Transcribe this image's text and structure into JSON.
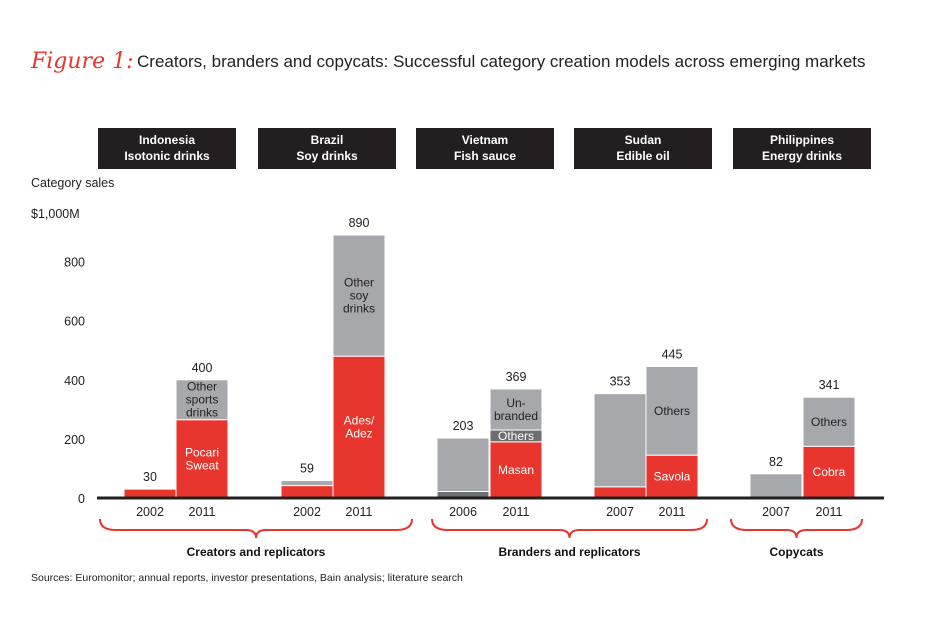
{
  "title": {
    "figure_label": "Figure 1:",
    "text": "Creators, branders and copycats: Successful category creation models across emerging markets"
  },
  "colors": {
    "red": "#e8352d",
    "gray": "#a6a8ab",
    "dark_gray": "#6d6e71",
    "header_bg": "#231f20",
    "brace": "#e8352d",
    "axis": "#231f20"
  },
  "chart_data": {
    "type": "bar",
    "stacked": true,
    "ylabel": "Category sales",
    "yunit": "$1,000M",
    "ylim": [
      0,
      1000
    ],
    "yticks": [
      0,
      200,
      400,
      600,
      800
    ],
    "panels": [
      {
        "header": [
          "Indonesia",
          "Isotonic drinks"
        ],
        "bars": [
          {
            "year": "2002",
            "total": 30,
            "total_label": "30",
            "segments": [
              {
                "value": 30,
                "color": "red",
                "label": []
              }
            ]
          },
          {
            "year": "2011",
            "total": 400,
            "total_label": "400",
            "segments": [
              {
                "value": 265,
                "color": "red",
                "label": [
                  "Pocari",
                  "Sweat"
                ]
              },
              {
                "value": 135,
                "color": "gray",
                "label": [
                  "Other",
                  "sports",
                  "drinks"
                ]
              }
            ]
          }
        ]
      },
      {
        "header": [
          "Brazil",
          "Soy drinks"
        ],
        "bars": [
          {
            "year": "2002",
            "total": 59,
            "total_label": "59",
            "segments": [
              {
                "value": 42,
                "color": "red",
                "label": []
              },
              {
                "value": 17,
                "color": "gray",
                "label": []
              }
            ]
          },
          {
            "year": "2011",
            "total": 890,
            "total_label": "890",
            "segments": [
              {
                "value": 480,
                "color": "red",
                "label": [
                  "Ades/",
                  "Adez"
                ]
              },
              {
                "value": 410,
                "color": "gray",
                "label": [
                  "Other",
                  "soy",
                  "drinks"
                ]
              }
            ]
          }
        ]
      },
      {
        "header": [
          "Vietnam",
          "Fish sauce"
        ],
        "bars": [
          {
            "year": "2006",
            "total": 203,
            "total_label": "203",
            "segments": [
              {
                "value": 22,
                "color": "dark_gray",
                "label": []
              },
              {
                "value": 181,
                "color": "gray",
                "label": []
              }
            ]
          },
          {
            "year": "2011",
            "total": 369,
            "total_label": "369",
            "segments": [
              {
                "value": 190,
                "color": "red",
                "label": [
                  "Masan"
                ]
              },
              {
                "value": 40,
                "color": "dark_gray",
                "label": [
                  "Others"
                ]
              },
              {
                "value": 139,
                "color": "gray",
                "label": [
                  "Un-",
                  "branded"
                ]
              }
            ]
          }
        ]
      },
      {
        "header": [
          "Sudan",
          "Edible oil"
        ],
        "bars": [
          {
            "year": "2007",
            "total": 353,
            "total_label": "353",
            "segments": [
              {
                "value": 38,
                "color": "red",
                "label": []
              },
              {
                "value": 315,
                "color": "gray",
                "label": []
              }
            ]
          },
          {
            "year": "2011",
            "total": 445,
            "total_label": "445",
            "segments": [
              {
                "value": 145,
                "color": "red",
                "label": [
                  "Savola"
                ]
              },
              {
                "value": 300,
                "color": "gray",
                "label": [
                  "Others"
                ]
              }
            ]
          }
        ]
      },
      {
        "header": [
          "Philippines",
          "Energy drinks"
        ],
        "bars": [
          {
            "year": "2007",
            "total": 82,
            "total_label": "82",
            "segments": [
              {
                "value": 82,
                "color": "gray",
                "label": []
              }
            ]
          },
          {
            "year": "2011",
            "total": 341,
            "total_label": "341",
            "segments": [
              {
                "value": 175,
                "color": "red",
                "label": [
                  "Cobra"
                ]
              },
              {
                "value": 166,
                "color": "gray",
                "label": [
                  "Others"
                ]
              }
            ]
          }
        ]
      }
    ],
    "groups": [
      {
        "label": "Creators and replicators",
        "panels": [
          0,
          1
        ]
      },
      {
        "label": "Branders and replicators",
        "panels": [
          2,
          3
        ]
      },
      {
        "label": "Copycats",
        "panels": [
          4
        ]
      }
    ]
  },
  "source": "Sources: Euromonitor; annual reports, investor presentations, Bain analysis; literature search"
}
